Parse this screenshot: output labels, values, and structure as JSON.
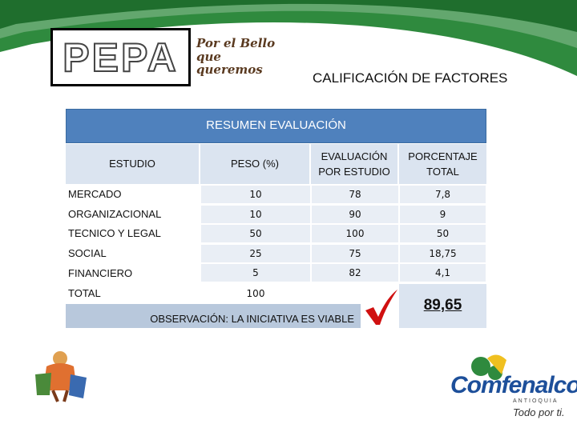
{
  "header": {
    "logo_text": "PEPA",
    "slogan": "Por el Bello que queremos",
    "title": "CALIFICACIÓN DE FACTORES"
  },
  "table": {
    "title": "RESUMEN EVALUACIÓN",
    "headers": [
      "ESTUDIO",
      "PESO (%)",
      "EVALUACIÓN POR ESTUDIO",
      "PORCENTAJE TOTAL"
    ],
    "rows": [
      [
        "MERCADO",
        "10",
        "78",
        "7,8"
      ],
      [
        "ORGANIZACIONAL",
        "10",
        "90",
        "9"
      ],
      [
        "TECNICO Y LEGAL",
        "50",
        "100",
        "50"
      ],
      [
        "SOCIAL",
        "25",
        "75",
        "18,75"
      ],
      [
        "FINANCIERO",
        "5",
        "82",
        "4,1"
      ]
    ],
    "total_row": [
      "TOTAL",
      "100"
    ],
    "observation": "OBSERVACIÓN: LA INICIATIVA ES VIABLE",
    "total_score": "89,65"
  },
  "footer": {
    "brand": "Comfenalco",
    "region": "ANTIOQUIA",
    "tagline": "Todo por ti."
  }
}
